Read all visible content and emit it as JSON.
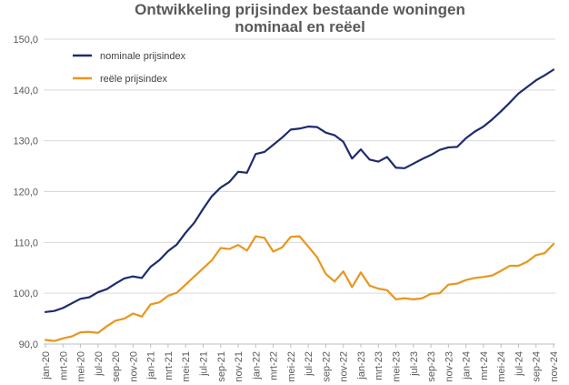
{
  "chart_data": {
    "type": "line",
    "title": [
      "Ontwikkeling prijsindex bestaande woningen",
      "nominaal en reëel"
    ],
    "xlabel": "",
    "ylabel": "",
    "ylim": [
      90,
      150
    ],
    "yticks": [
      90,
      100,
      110,
      120,
      130,
      140,
      150
    ],
    "ytick_labels": [
      "90,0",
      "100,0",
      "110,0",
      "120,0",
      "130,0",
      "140,0",
      "150,0"
    ],
    "grid": true,
    "legend_position": "top-left",
    "x_tick_labels": [
      "jan-20",
      "mrt-20",
      "mei-20",
      "jul-20",
      "sep-20",
      "nov-20",
      "jan-21",
      "mrt-21",
      "mei-21",
      "jul-21",
      "sep-21",
      "nov-21",
      "jan-22",
      "mrt-22",
      "mei-22",
      "jul-22",
      "sep-22",
      "nov-22",
      "jan-23",
      "mrt-23",
      "mei-23",
      "jul-23",
      "sep-23",
      "nov-23",
      "jan-24",
      "mrt-24",
      "mei-24",
      "jul-24",
      "sep-24",
      "nov-24"
    ],
    "x_tick_every": 2,
    "series": [
      {
        "name": "nominale prijsindex",
        "color": "#1f2a6e",
        "values": [
          96.3,
          96.5,
          97.1,
          98.0,
          98.9,
          99.2,
          100.2,
          100.8,
          101.9,
          102.9,
          103.3,
          103.0,
          105.2,
          106.5,
          108.3,
          109.6,
          111.9,
          113.9,
          116.6,
          119.1,
          120.8,
          121.9,
          123.9,
          123.7,
          127.4,
          127.8,
          129.2,
          130.6,
          132.2,
          132.4,
          132.8,
          132.7,
          131.6,
          131.1,
          129.8,
          126.5,
          128.3,
          126.3,
          125.9,
          126.8,
          124.7,
          124.6,
          125.5,
          126.4,
          127.2,
          128.2,
          128.7,
          128.8,
          130.5,
          131.8,
          132.8,
          134.2,
          135.8,
          137.5,
          139.3,
          140.6,
          141.9,
          142.9,
          144.0
        ]
      },
      {
        "name": "reële prijsindex",
        "color": "#e8961e",
        "values": [
          90.8,
          90.6,
          91.1,
          91.5,
          92.3,
          92.4,
          92.2,
          93.5,
          94.6,
          95.0,
          96.0,
          95.4,
          97.8,
          98.2,
          99.5,
          100.1,
          101.7,
          103.3,
          104.9,
          106.5,
          108.9,
          108.7,
          109.5,
          108.4,
          111.2,
          110.9,
          108.2,
          109.0,
          111.1,
          111.2,
          109.2,
          107.1,
          103.8,
          102.3,
          104.3,
          101.2,
          104.1,
          101.5,
          100.9,
          100.6,
          98.8,
          99.0,
          98.8,
          99.0,
          99.9,
          100.0,
          101.7,
          101.9,
          102.6,
          103.0,
          103.2,
          103.5,
          104.4,
          105.4,
          105.4,
          106.2,
          107.5,
          107.9,
          109.7
        ]
      }
    ]
  }
}
